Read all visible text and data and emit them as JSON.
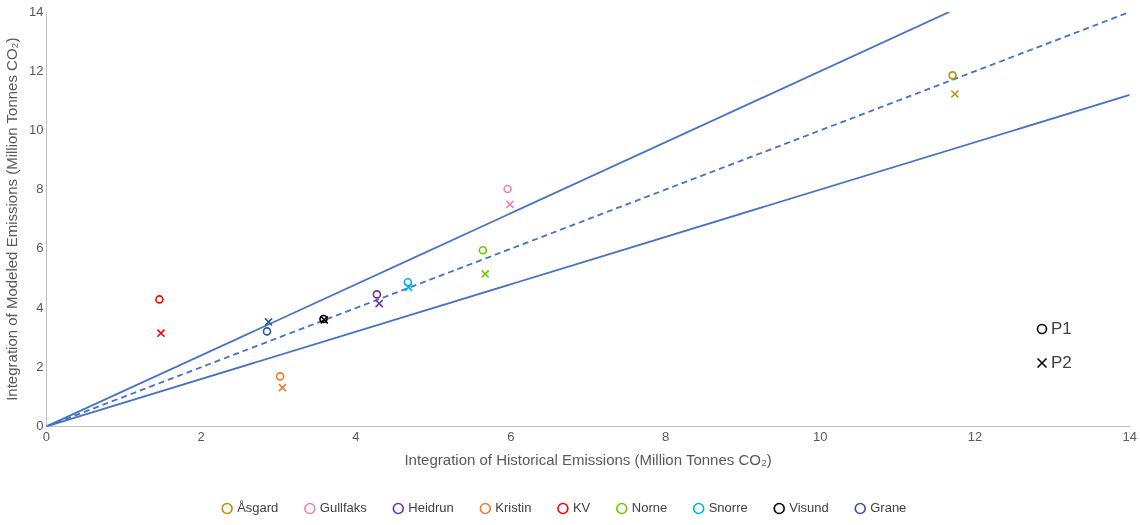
{
  "chart_data": {
    "type": "scatter",
    "xlabel": "Integration of Historical Emissions (Million Tonnes CO₂)",
    "ylabel": "Integration of Modeled Emissions (Million Tonnes CO₂)",
    "xlim": [
      0,
      14
    ],
    "ylim": [
      0,
      14
    ],
    "xticks": [
      0,
      2,
      4,
      6,
      8,
      10,
      12,
      14
    ],
    "yticks": [
      0,
      2,
      4,
      6,
      8,
      10,
      12,
      14
    ],
    "grid": false,
    "legend": "bottom",
    "annotations": [
      "P1",
      "P2"
    ],
    "series": [
      {
        "name": "Åsgard",
        "color": "#bf9000",
        "marker": "circle",
        "x": [
          11.71
        ],
        "values": [
          11.86
        ]
      },
      {
        "name": "Gullfaks",
        "color": "#f47fb5",
        "marker": "circle",
        "x": [
          5.96
        ],
        "values": [
          8.02
        ]
      },
      {
        "name": "Heidrun",
        "color": "#7030a0",
        "marker": "circle",
        "x": [
          4.27
        ],
        "values": [
          4.46
        ]
      },
      {
        "name": "Kristin",
        "color": "#ed7d31",
        "marker": "circle",
        "x": [
          3.02
        ],
        "values": [
          1.69
        ]
      },
      {
        "name": "KV",
        "color": "#ff0000",
        "marker": "circle",
        "x": [
          1.46
        ],
        "values": [
          4.29
        ]
      },
      {
        "name": "Norne",
        "color": "#66cc00",
        "marker": "circle",
        "x": [
          5.64
        ],
        "values": [
          5.95
        ]
      },
      {
        "name": "Snorre",
        "color": "#00b0f0",
        "marker": "circle",
        "x": [
          4.67
        ],
        "values": [
          4.87
        ]
      },
      {
        "name": "Visund",
        "color": "#000000",
        "marker": "circle",
        "x": [
          3.58
        ],
        "values": [
          3.63
        ]
      },
      {
        "name": "Grane",
        "color": "#2f5597",
        "marker": "circle",
        "x": [
          2.85
        ],
        "values": [
          3.21
        ]
      },
      {
        "color": "#bf9000",
        "marker": "cross",
        "x": [
          11.74
        ],
        "values": [
          11.23
        ]
      },
      {
        "color": "#f47fb5",
        "marker": "cross",
        "x": [
          5.99
        ],
        "values": [
          7.5
        ]
      },
      {
        "color": "#7030a0",
        "marker": "cross",
        "x": [
          4.3
        ],
        "values": [
          4.15
        ]
      },
      {
        "color": "#ed7d31",
        "marker": "cross",
        "x": [
          3.05
        ],
        "values": [
          1.31
        ]
      },
      {
        "color": "#ff0000",
        "marker": "cross",
        "x": [
          1.48
        ],
        "values": [
          3.15
        ]
      },
      {
        "color": "#66cc00",
        "marker": "cross",
        "x": [
          5.67
        ],
        "values": [
          5.15
        ]
      },
      {
        "color": "#00b0f0",
        "marker": "cross",
        "x": [
          4.68
        ],
        "values": [
          4.7
        ]
      },
      {
        "color": "#000000",
        "marker": "cross",
        "x": [
          3.59
        ],
        "values": [
          3.6
        ]
      },
      {
        "color": "#2f5597",
        "marker": "cross",
        "x": [
          2.87
        ],
        "values": [
          3.53
        ]
      },
      {
        "type": "line",
        "color": "#4472c4",
        "marker": "none",
        "line_style": "dashed",
        "x": [
          0,
          14
        ],
        "values": [
          0,
          14
        ]
      },
      {
        "type": "line",
        "color": "#4472c4",
        "marker": "none",
        "line_style": "solid",
        "x": [
          0,
          11.667
        ],
        "values": [
          0,
          14
        ]
      },
      {
        "type": "line",
        "color": "#4472c4",
        "marker": "none",
        "line_style": "solid",
        "x": [
          0,
          14
        ],
        "values": [
          0,
          11.2
        ]
      }
    ]
  }
}
